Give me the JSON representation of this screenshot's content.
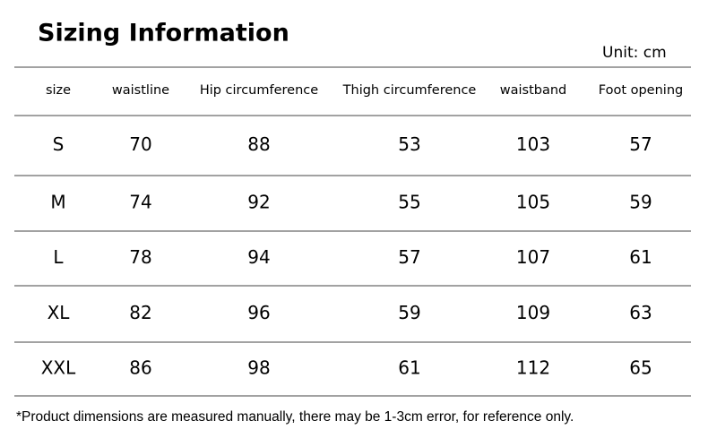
{
  "header": {
    "title": "Sizing Information",
    "unit": "Unit: cm"
  },
  "table": {
    "columns": [
      "size",
      "waistline",
      "Hip circumference",
      "Thigh circumference",
      "waistband",
      "Foot opening"
    ],
    "rows": [
      [
        "S",
        70,
        88,
        53,
        103,
        57
      ],
      [
        "M",
        74,
        92,
        55,
        105,
        59
      ],
      [
        "L",
        78,
        94,
        57,
        107,
        61
      ],
      [
        "XL",
        82,
        96,
        59,
        109,
        63
      ],
      [
        "XXL",
        86,
        98,
        61,
        112,
        65
      ]
    ]
  },
  "footnote": "*Product dimensions are measured manually, there may be 1-3cm error, for reference only."
}
